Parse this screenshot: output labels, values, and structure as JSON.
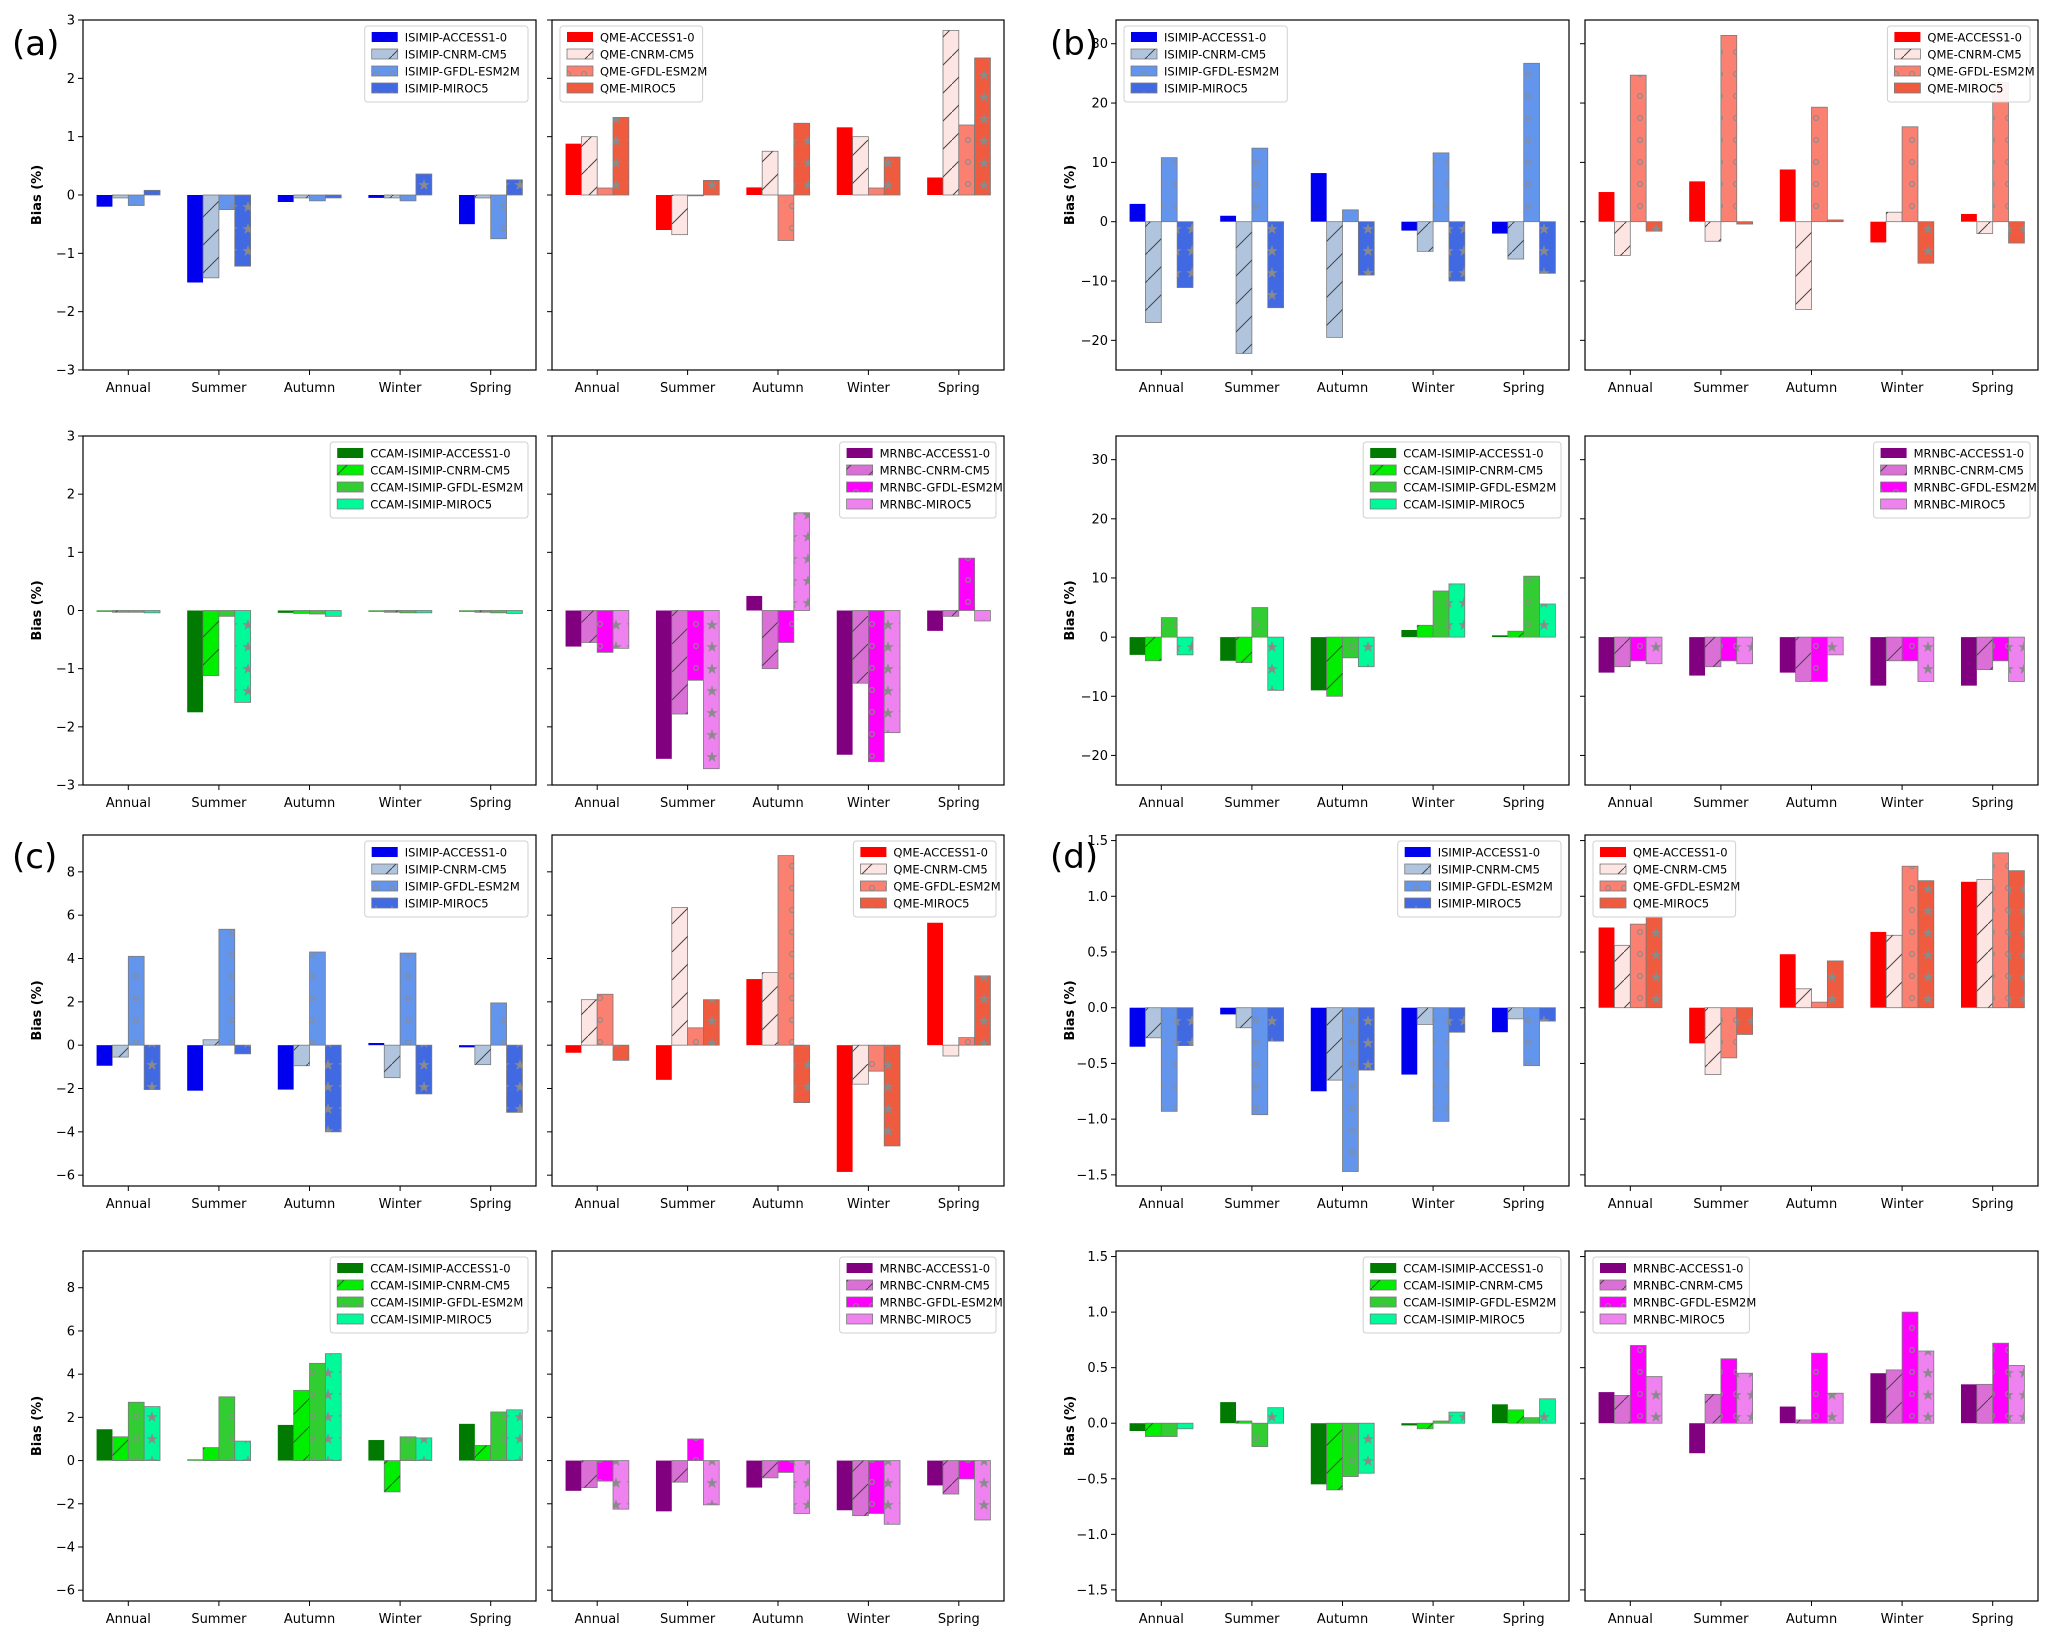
{
  "figure_labels": [
    "(a)",
    "(b)",
    "(c)",
    "(d)"
  ],
  "palettes": {
    "ISIMIP": [
      "#0000ee",
      "#b0c4de",
      "#6495ed",
      "#4169e1"
    ],
    "QME": [
      "#ff0000",
      "#fde5e3",
      "#fa8072",
      "#ef5b3e"
    ],
    "CCAM": [
      "#007a00",
      "#00ee00",
      "#32cd32",
      "#00fa9a"
    ],
    "MRNBC": [
      "#800080",
      "#da70d6",
      "#ff00ff",
      "#ee82ee"
    ]
  },
  "hatches": [
    "solid",
    "diagonal",
    "dots",
    "stars"
  ],
  "chart_data": [
    {
      "id": "a-isimip",
      "type": "bar",
      "group": "ISIMIP",
      "ylabel": "Bias (%)",
      "ylim": [
        -3,
        3
      ],
      "yticks": [
        -3,
        -2,
        -1,
        0,
        1,
        2,
        3
      ],
      "legend_position": "top-right",
      "categories": [
        "Annual",
        "Summer",
        "Autumn",
        "Winter",
        "Spring"
      ],
      "series": [
        {
          "name": "ISIMIP-ACCESS1-0",
          "values": [
            -0.2,
            -1.5,
            -0.12,
            -0.05,
            -0.5
          ]
        },
        {
          "name": "ISIMIP-CNRM-CM5",
          "values": [
            -0.05,
            -1.42,
            -0.05,
            -0.05,
            -0.05
          ]
        },
        {
          "name": "ISIMIP-GFDL-ESM2M",
          "values": [
            -0.18,
            -0.25,
            -0.1,
            -0.1,
            -0.75
          ]
        },
        {
          "name": "ISIMIP-MIROC5",
          "values": [
            0.08,
            -1.22,
            -0.05,
            0.36,
            0.26
          ]
        }
      ]
    },
    {
      "id": "a-qme",
      "type": "bar",
      "group": "QME",
      "ylim": [
        -3,
        3
      ],
      "yticks": [
        -3,
        -2,
        -1,
        0,
        1,
        2,
        3
      ],
      "legend_position": "top-left",
      "categories": [
        "Annual",
        "Summer",
        "Autumn",
        "Winter",
        "Spring"
      ],
      "series": [
        {
          "name": "QME-ACCESS1-0",
          "values": [
            0.88,
            -0.6,
            0.13,
            1.16,
            0.3
          ]
        },
        {
          "name": "QME-CNRM-CM5",
          "values": [
            1.0,
            -0.68,
            0.75,
            1.0,
            2.82
          ]
        },
        {
          "name": "QME-GFDL-ESM2M",
          "values": [
            0.12,
            0.0,
            -0.78,
            0.12,
            1.2
          ]
        },
        {
          "name": "QME-MIROC5",
          "values": [
            1.33,
            0.25,
            1.23,
            0.65,
            2.35
          ]
        }
      ]
    },
    {
      "id": "a-ccam",
      "type": "bar",
      "group": "CCAM",
      "ylabel": "Bias (%)",
      "ylim": [
        -3,
        3
      ],
      "yticks": [
        -3,
        -2,
        -1,
        0,
        1,
        2,
        3
      ],
      "legend_position": "top-right",
      "categories": [
        "Annual",
        "Summer",
        "Autumn",
        "Winter",
        "Spring"
      ],
      "series": [
        {
          "name": "CCAM-ISIMIP-ACCESS1-0",
          "values": [
            -0.02,
            -1.75,
            -0.04,
            -0.02,
            -0.02
          ]
        },
        {
          "name": "CCAM-ISIMIP-CNRM-CM5",
          "values": [
            -0.03,
            -1.12,
            -0.05,
            -0.03,
            -0.03
          ]
        },
        {
          "name": "CCAM-ISIMIP-GFDL-ESM2M",
          "values": [
            -0.03,
            -0.1,
            -0.06,
            -0.04,
            -0.04
          ]
        },
        {
          "name": "CCAM-ISIMIP-MIROC5",
          "values": [
            -0.04,
            -1.58,
            -0.1,
            -0.04,
            -0.05
          ]
        }
      ]
    },
    {
      "id": "a-mrnbc",
      "type": "bar",
      "group": "MRNBC",
      "ylim": [
        -3,
        3
      ],
      "yticks": [
        -3,
        -2,
        -1,
        0,
        1,
        2,
        3
      ],
      "legend_position": "top-right",
      "categories": [
        "Annual",
        "Summer",
        "Autumn",
        "Winter",
        "Spring"
      ],
      "series": [
        {
          "name": "MRNBC-ACCESS1-0",
          "values": [
            -0.62,
            -2.55,
            0.25,
            -2.48,
            -0.35
          ]
        },
        {
          "name": "MRNBC-CNRM-CM5",
          "values": [
            -0.55,
            -1.78,
            -1.0,
            -1.25,
            -0.1
          ]
        },
        {
          "name": "MRNBC-GFDL-ESM2M",
          "values": [
            -0.72,
            -1.2,
            -0.55,
            -2.6,
            0.9
          ]
        },
        {
          "name": "MRNBC-MIROC5",
          "values": [
            -0.65,
            -2.72,
            1.68,
            -2.1,
            -0.18
          ]
        }
      ]
    },
    {
      "id": "b-isimip",
      "type": "bar",
      "group": "ISIMIP",
      "ylabel": "Bias (%)",
      "ylim": [
        -25,
        34
      ],
      "yticks": [
        -20,
        -10,
        0,
        10,
        20,
        30
      ],
      "legend_position": "top-left",
      "categories": [
        "Annual",
        "Summer",
        "Autumn",
        "Winter",
        "Spring"
      ],
      "series": [
        {
          "name": "ISIMIP-ACCESS1-0",
          "values": [
            3.0,
            1.0,
            8.2,
            -1.5,
            -2.0
          ]
        },
        {
          "name": "ISIMIP-CNRM-CM5",
          "values": [
            -17.0,
            -22.2,
            -19.5,
            -5.0,
            -6.3
          ]
        },
        {
          "name": "ISIMIP-GFDL-ESM2M",
          "values": [
            10.8,
            12.4,
            2.0,
            11.6,
            26.7
          ]
        },
        {
          "name": "ISIMIP-MIROC5",
          "values": [
            -11.1,
            -14.5,
            -9.0,
            -10.0,
            -8.7
          ]
        }
      ]
    },
    {
      "id": "b-qme",
      "type": "bar",
      "group": "QME",
      "ylim": [
        -25,
        34
      ],
      "yticks": [
        -20,
        -10,
        0,
        10,
        20,
        30
      ],
      "legend_position": "top-right",
      "categories": [
        "Annual",
        "Summer",
        "Autumn",
        "Winter",
        "Spring"
      ],
      "series": [
        {
          "name": "QME-ACCESS1-0",
          "values": [
            5.0,
            6.8,
            8.8,
            -3.5,
            1.3
          ]
        },
        {
          "name": "QME-CNRM-CM5",
          "values": [
            -5.7,
            -3.3,
            -14.8,
            1.6,
            -2.0
          ]
        },
        {
          "name": "QME-GFDL-ESM2M",
          "values": [
            24.7,
            31.4,
            19.3,
            16.0,
            23.5
          ]
        },
        {
          "name": "QME-MIROC5",
          "values": [
            -1.6,
            -0.4,
            0.3,
            -7.0,
            -3.6
          ]
        }
      ]
    },
    {
      "id": "b-ccam",
      "type": "bar",
      "group": "CCAM",
      "ylabel": "Bias (%)",
      "ylim": [
        -25,
        34
      ],
      "yticks": [
        -20,
        -10,
        0,
        10,
        20,
        30
      ],
      "legend_position": "top-right",
      "categories": [
        "Annual",
        "Summer",
        "Autumn",
        "Winter",
        "Spring"
      ],
      "series": [
        {
          "name": "CCAM-ISIMIP-ACCESS1-0",
          "values": [
            -3.0,
            -4.0,
            -9.0,
            1.2,
            0.3
          ]
        },
        {
          "name": "CCAM-ISIMIP-CNRM-CM5",
          "values": [
            -4.0,
            -4.3,
            -10.0,
            2.0,
            1.0
          ]
        },
        {
          "name": "CCAM-ISIMIP-GFDL-ESM2M",
          "values": [
            3.3,
            5.0,
            -3.5,
            7.8,
            10.3
          ]
        },
        {
          "name": "CCAM-ISIMIP-MIROC5",
          "values": [
            -3.0,
            -9.0,
            -5.0,
            9.0,
            5.6
          ]
        }
      ]
    },
    {
      "id": "b-mrnbc",
      "type": "bar",
      "group": "MRNBC",
      "ylim": [
        -25,
        34
      ],
      "yticks": [
        -20,
        -10,
        0,
        10,
        20,
        30
      ],
      "legend_position": "top-right",
      "categories": [
        "Annual",
        "Summer",
        "Autumn",
        "Winter",
        "Spring"
      ],
      "series": [
        {
          "name": "MRNBC-ACCESS1-0",
          "values": [
            -6.0,
            -6.5,
            -6.0,
            -8.2,
            -8.2
          ]
        },
        {
          "name": "MRNBC-CNRM-CM5",
          "values": [
            -5.0,
            -5.0,
            -7.5,
            -4.0,
            -5.5
          ]
        },
        {
          "name": "MRNBC-GFDL-ESM2M",
          "values": [
            -4.0,
            -4.0,
            -7.5,
            -4.0,
            -4.0
          ]
        },
        {
          "name": "MRNBC-MIROC5",
          "values": [
            -4.5,
            -4.5,
            -3.0,
            -7.5,
            -7.5
          ]
        }
      ]
    },
    {
      "id": "c-isimip",
      "type": "bar",
      "group": "ISIMIP",
      "ylabel": "Bias (%)",
      "ylim": [
        -6.5,
        9.7
      ],
      "yticks": [
        -6,
        -4,
        -2,
        0,
        2,
        4,
        6,
        8
      ],
      "legend_position": "top-right",
      "categories": [
        "Annual",
        "Summer",
        "Autumn",
        "Winter",
        "Spring"
      ],
      "series": [
        {
          "name": "ISIMIP-ACCESS1-0",
          "values": [
            -0.95,
            -2.1,
            -2.05,
            0.1,
            -0.1
          ]
        },
        {
          "name": "ISIMIP-CNRM-CM5",
          "values": [
            -0.55,
            0.25,
            -0.95,
            -1.5,
            -0.9
          ]
        },
        {
          "name": "ISIMIP-GFDL-ESM2M",
          "values": [
            4.1,
            5.35,
            4.3,
            4.25,
            1.95
          ]
        },
        {
          "name": "ISIMIP-MIROC5",
          "values": [
            -2.05,
            -0.4,
            -4.0,
            -2.25,
            -3.1
          ]
        }
      ]
    },
    {
      "id": "c-qme",
      "type": "bar",
      "group": "QME",
      "ylim": [
        -6.5,
        9.7
      ],
      "yticks": [
        -6,
        -4,
        -2,
        0,
        2,
        4,
        6,
        8
      ],
      "legend_position": "top-right",
      "categories": [
        "Annual",
        "Summer",
        "Autumn",
        "Winter",
        "Spring"
      ],
      "series": [
        {
          "name": "QME-ACCESS1-0",
          "values": [
            -0.35,
            -1.6,
            3.05,
            -5.85,
            5.65
          ]
        },
        {
          "name": "QME-CNRM-CM5",
          "values": [
            2.1,
            6.35,
            3.35,
            -1.8,
            -0.5
          ]
        },
        {
          "name": "QME-GFDL-ESM2M",
          "values": [
            2.35,
            0.8,
            8.75,
            -1.2,
            0.35
          ]
        },
        {
          "name": "QME-MIROC5",
          "values": [
            -0.7,
            2.1,
            -2.65,
            -4.65,
            3.2
          ]
        }
      ]
    },
    {
      "id": "c-ccam",
      "type": "bar",
      "group": "CCAM",
      "ylabel": "Bias (%)",
      "ylim": [
        -6.5,
        9.7
      ],
      "yticks": [
        -6,
        -4,
        -2,
        0,
        2,
        4,
        6,
        8
      ],
      "legend_position": "top-right",
      "categories": [
        "Annual",
        "Summer",
        "Autumn",
        "Winter",
        "Spring"
      ],
      "series": [
        {
          "name": "CCAM-ISIMIP-ACCESS1-0",
          "values": [
            1.45,
            0.05,
            1.65,
            0.95,
            1.7
          ]
        },
        {
          "name": "CCAM-ISIMIP-CNRM-CM5",
          "values": [
            1.1,
            0.6,
            3.25,
            -1.45,
            0.7
          ]
        },
        {
          "name": "CCAM-ISIMIP-GFDL-ESM2M",
          "values": [
            2.7,
            2.95,
            4.5,
            1.1,
            2.25
          ]
        },
        {
          "name": "CCAM-ISIMIP-MIROC5",
          "values": [
            2.5,
            0.9,
            4.95,
            1.05,
            2.35
          ]
        }
      ]
    },
    {
      "id": "c-mrnbc",
      "type": "bar",
      "group": "MRNBC",
      "ylim": [
        -6.5,
        9.7
      ],
      "yticks": [
        -6,
        -4,
        -2,
        0,
        2,
        4,
        6,
        8
      ],
      "legend_position": "top-right",
      "categories": [
        "Annual",
        "Summer",
        "Autumn",
        "Winter",
        "Spring"
      ],
      "series": [
        {
          "name": "MRNBC-ACCESS1-0",
          "values": [
            -1.4,
            -2.35,
            -1.25,
            -2.3,
            -1.15
          ]
        },
        {
          "name": "MRNBC-CNRM-CM5",
          "values": [
            -1.25,
            -1.0,
            -0.8,
            -2.55,
            -1.55
          ]
        },
        {
          "name": "MRNBC-GFDL-ESM2M",
          "values": [
            -0.95,
            1.0,
            -0.55,
            -2.45,
            -0.85
          ]
        },
        {
          "name": "MRNBC-MIROC5",
          "values": [
            -2.25,
            -2.05,
            -2.45,
            -2.95,
            -2.75
          ]
        }
      ]
    },
    {
      "id": "d-isimip",
      "type": "bar",
      "group": "ISIMIP",
      "ylabel": "Bias (%)",
      "ylim": [
        -1.6,
        1.55
      ],
      "yticks": [
        -1.5,
        -1.0,
        -0.5,
        0.0,
        0.5,
        1.0,
        1.5
      ],
      "legend_position": "top-right",
      "categories": [
        "Annual",
        "Summer",
        "Autumn",
        "Winter",
        "Spring"
      ],
      "series": [
        {
          "name": "ISIMIP-ACCESS1-0",
          "values": [
            -0.35,
            -0.06,
            -0.75,
            -0.6,
            -0.22
          ]
        },
        {
          "name": "ISIMIP-CNRM-CM5",
          "values": [
            -0.27,
            -0.18,
            -0.65,
            -0.15,
            -0.1
          ]
        },
        {
          "name": "ISIMIP-GFDL-ESM2M",
          "values": [
            -0.93,
            -0.96,
            -1.47,
            -1.02,
            -0.52
          ]
        },
        {
          "name": "ISIMIP-MIROC5",
          "values": [
            -0.34,
            -0.3,
            -0.56,
            -0.22,
            -0.12
          ]
        }
      ]
    },
    {
      "id": "d-qme",
      "type": "bar",
      "group": "QME",
      "ylim": [
        -1.6,
        1.55
      ],
      "yticks": [
        -1.5,
        -1.0,
        -0.5,
        0.0,
        0.5,
        1.0,
        1.5
      ],
      "legend_position": "top-left",
      "categories": [
        "Annual",
        "Summer",
        "Autumn",
        "Winter",
        "Spring"
      ],
      "series": [
        {
          "name": "QME-ACCESS1-0",
          "values": [
            0.72,
            -0.32,
            0.48,
            0.68,
            1.13
          ]
        },
        {
          "name": "QME-CNRM-CM5",
          "values": [
            0.56,
            -0.6,
            0.17,
            0.65,
            1.15
          ]
        },
        {
          "name": "QME-GFDL-ESM2M",
          "values": [
            0.75,
            -0.45,
            0.05,
            1.27,
            1.39
          ]
        },
        {
          "name": "QME-MIROC5",
          "values": [
            0.82,
            -0.24,
            0.42,
            1.14,
            1.23
          ]
        }
      ]
    },
    {
      "id": "d-ccam",
      "type": "bar",
      "group": "CCAM",
      "ylabel": "Bias (%)",
      "ylim": [
        -1.6,
        1.55
      ],
      "yticks": [
        -1.5,
        -1.0,
        -0.5,
        0.0,
        0.5,
        1.0,
        1.5
      ],
      "legend_position": "top-right",
      "categories": [
        "Annual",
        "Summer",
        "Autumn",
        "Winter",
        "Spring"
      ],
      "series": [
        {
          "name": "CCAM-ISIMIP-ACCESS1-0",
          "values": [
            -0.07,
            0.19,
            -0.55,
            -0.02,
            0.17
          ]
        },
        {
          "name": "CCAM-ISIMIP-CNRM-CM5",
          "values": [
            -0.12,
            0.02,
            -0.6,
            -0.05,
            0.12
          ]
        },
        {
          "name": "CCAM-ISIMIP-GFDL-ESM2M",
          "values": [
            -0.12,
            -0.21,
            -0.48,
            0.02,
            0.05
          ]
        },
        {
          "name": "CCAM-ISIMIP-MIROC5",
          "values": [
            -0.05,
            0.14,
            -0.45,
            0.1,
            0.22
          ]
        }
      ]
    },
    {
      "id": "d-mrnbc",
      "type": "bar",
      "group": "MRNBC",
      "ylim": [
        -1.6,
        1.55
      ],
      "yticks": [
        -1.5,
        -1.0,
        -0.5,
        0.0,
        0.5,
        1.0,
        1.5
      ],
      "legend_position": "top-left",
      "categories": [
        "Annual",
        "Summer",
        "Autumn",
        "Winter",
        "Spring"
      ],
      "series": [
        {
          "name": "MRNBC-ACCESS1-0",
          "values": [
            0.28,
            -0.27,
            0.15,
            0.45,
            0.35
          ]
        },
        {
          "name": "MRNBC-CNRM-CM5",
          "values": [
            0.25,
            0.26,
            0.03,
            0.48,
            0.35
          ]
        },
        {
          "name": "MRNBC-GFDL-ESM2M",
          "values": [
            0.7,
            0.58,
            0.63,
            1.0,
            0.72
          ]
        },
        {
          "name": "MRNBC-MIROC5",
          "values": [
            0.42,
            0.45,
            0.27,
            0.65,
            0.52
          ]
        }
      ]
    }
  ]
}
